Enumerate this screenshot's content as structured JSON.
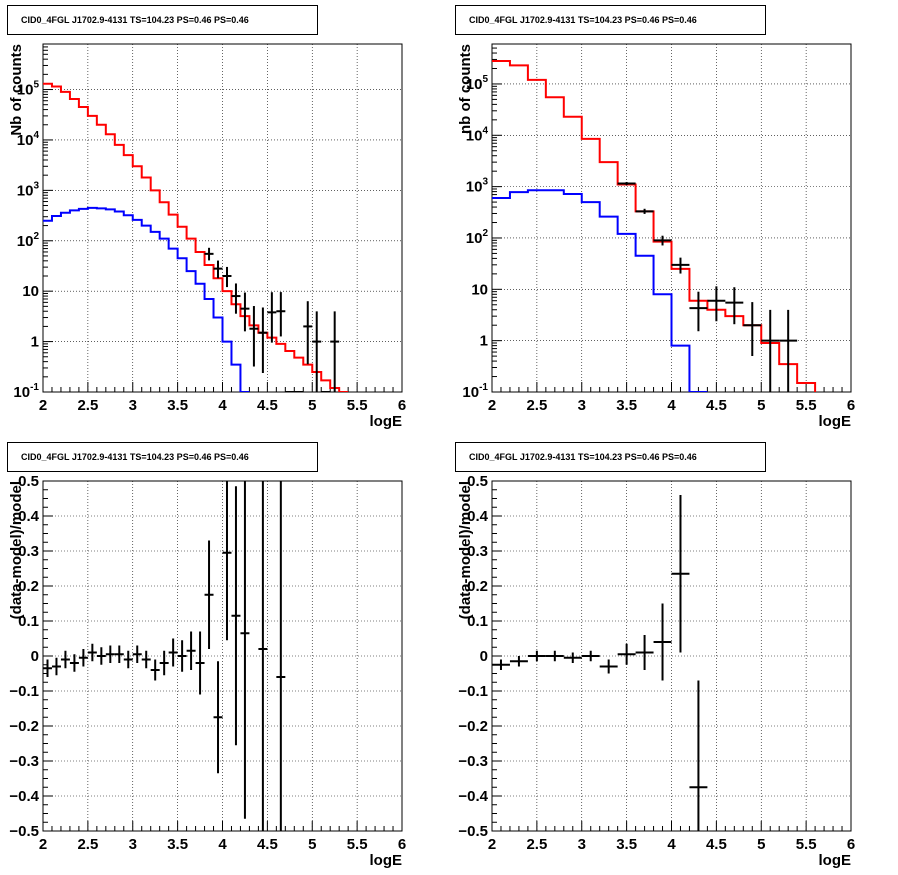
{
  "colors": {
    "model_total": "#ff0000",
    "model_source": "#0000ff",
    "data": "#000000",
    "grid": "#000000"
  },
  "charts": [
    {
      "id": "counts-fine",
      "title": "CID0_4FGL J1702.9-4131 TS=104.23 PS=0.46 PS=0.46",
      "xlabel": "logE",
      "ylabel": "Nb of counts",
      "xticks": [
        "2",
        "2.5",
        "3",
        "3.5",
        "4",
        "4.5",
        "5",
        "5.5",
        "6"
      ],
      "yticks": [
        "10^-1",
        "1",
        "10",
        "10^2",
        "10^3",
        "10^4",
        "10^5"
      ]
    },
    {
      "id": "counts-coarse",
      "title": "CID0_4FGL J1702.9-4131 TS=104.23 PS=0.46 PS=0.46",
      "xlabel": "logE",
      "ylabel": "nb of counts",
      "xticks": [
        "2",
        "2.5",
        "3",
        "3.5",
        "4",
        "4.5",
        "5",
        "5.5",
        "6"
      ],
      "yticks": [
        "10^-1",
        "1",
        "10",
        "10^2",
        "10^3",
        "10^4",
        "10^5"
      ]
    },
    {
      "id": "residuals-fine",
      "title": "CID0_4FGL J1702.9-4131 TS=104.23 PS=0.46 PS=0.46",
      "xlabel": "logE",
      "ylabel": "(data-model)/model",
      "xticks": [
        "2",
        "2.5",
        "3",
        "3.5",
        "4",
        "4.5",
        "5",
        "5.5",
        "6"
      ],
      "yticks": [
        "−0.5",
        "−0.4",
        "−0.3",
        "−0.2",
        "−0.1",
        "0",
        "0.1",
        "0.2",
        "0.3",
        "0.4",
        "0.5"
      ]
    },
    {
      "id": "residuals-coarse",
      "title": "CID0_4FGL J1702.9-4131 TS=104.23 PS=0.46 PS=0.46",
      "xlabel": "logE",
      "ylabel": "(data-model)/model",
      "xticks": [
        "2",
        "2.5",
        "3",
        "3.5",
        "4",
        "4.5",
        "5",
        "5.5",
        "6"
      ],
      "yticks": [
        "−0.5",
        "−0.4",
        "−0.3",
        "−0.2",
        "−0.1",
        "0",
        "0.1",
        "0.2",
        "0.3",
        "0.4",
        "0.5"
      ]
    }
  ],
  "chart_data": [
    {
      "type": "line",
      "title": "CID0_4FGL J1702.9-4131 TS=104.23 PS=0.46 PS=0.46",
      "xlabel": "logE",
      "ylabel": "Nb of counts",
      "xlim": [
        2,
        6
      ],
      "ylim": [
        0.1,
        800000
      ],
      "yscale": "log",
      "grid": true,
      "bin_width": 0.1,
      "series": [
        {
          "style": "step",
          "color": "#ff0000",
          "x": [
            2.0,
            2.1,
            2.2,
            2.3,
            2.4,
            2.5,
            2.6,
            2.7,
            2.8,
            2.9,
            3.0,
            3.1,
            3.2,
            3.3,
            3.4,
            3.5,
            3.6,
            3.7,
            3.8,
            3.9,
            4.0,
            4.1,
            4.2,
            4.3,
            4.4,
            4.5,
            4.6,
            4.7,
            4.8,
            4.9,
            5.0,
            5.1,
            5.2,
            5.3
          ],
          "values": [
            130000,
            115000,
            90000,
            65000,
            45000,
            30000,
            20000,
            13000,
            8000,
            5000,
            3000,
            1800,
            1000,
            580,
            330,
            190,
            110,
            60,
            33,
            18,
            10,
            5.5,
            3.2,
            2.1,
            1.5,
            1.2,
            0.9,
            0.65,
            0.48,
            0.35,
            0.25,
            0.17,
            0.12,
            0.1
          ]
        },
        {
          "style": "step",
          "color": "#0000ff",
          "x": [
            2.0,
            2.1,
            2.2,
            2.3,
            2.4,
            2.5,
            2.6,
            2.7,
            2.8,
            2.9,
            3.0,
            3.1,
            3.2,
            3.3,
            3.4,
            3.5,
            3.6,
            3.7,
            3.8,
            3.9,
            4.0,
            4.1,
            4.2
          ],
          "values": [
            250,
            310,
            360,
            400,
            430,
            450,
            440,
            420,
            380,
            320,
            260,
            200,
            150,
            110,
            70,
            45,
            25,
            14,
            7,
            3,
            1,
            0.35,
            0.1
          ]
        },
        {
          "style": "errorbar",
          "color": "#000000",
          "x": [
            3.85,
            3.95,
            4.05,
            4.15,
            4.25,
            4.35,
            4.45,
            4.55,
            4.65,
            4.75,
            4.85,
            4.95,
            5.05,
            5.15,
            5.25
          ],
          "values": [
            55,
            28,
            20,
            8,
            4.5,
            1.8,
            1.5,
            3.8,
            4.0,
            0.1,
            0.1,
            2.0,
            1.0,
            0.1,
            1.0
          ],
          "err_low": [
            0.13,
            0.19,
            0.22,
            0.35,
            0.45,
            0.75,
            0.8,
            0.6,
            0.5,
            0,
            0,
            0.75,
            1.0,
            0,
            1.0
          ],
          "err_high": [
            0.12,
            0.16,
            0.18,
            0.25,
            0.32,
            0.45,
            0.5,
            0.4,
            0.38,
            0,
            0,
            0.5,
            0.6,
            0,
            0.6
          ]
        }
      ]
    },
    {
      "type": "line",
      "title": "CID0_4FGL J1702.9-4131 TS=104.23 PS=0.46 PS=0.46",
      "xlabel": "logE",
      "ylabel": "nb of counts",
      "xlim": [
        2,
        6
      ],
      "ylim": [
        0.1,
        600000
      ],
      "yscale": "log",
      "grid": true,
      "bin_width": 0.2,
      "series": [
        {
          "style": "step",
          "color": "#ff0000",
          "x": [
            2.0,
            2.2,
            2.4,
            2.6,
            2.8,
            3.0,
            3.2,
            3.4,
            3.6,
            3.8,
            4.0,
            4.2,
            4.4,
            4.6,
            4.8,
            5.0,
            5.2,
            5.4
          ],
          "values": [
            280000,
            230000,
            120000,
            55000,
            23000,
            8500,
            3000,
            1100,
            330,
            85,
            25,
            6,
            4,
            3,
            2,
            0.9,
            0.35,
            0.15
          ]
        },
        {
          "style": "step",
          "color": "#0000ff",
          "x": [
            2.0,
            2.2,
            2.4,
            2.6,
            2.8,
            3.0,
            3.2,
            3.4,
            3.6,
            3.8,
            4.0,
            4.2
          ],
          "values": [
            600,
            780,
            850,
            850,
            720,
            500,
            260,
            120,
            45,
            8,
            0.8,
            0.1
          ]
        },
        {
          "style": "errorbar",
          "color": "#000000",
          "x": [
            3.5,
            3.7,
            3.9,
            4.1,
            4.3,
            4.5,
            4.7,
            4.9,
            5.1,
            5.3
          ],
          "values": [
            1150,
            330,
            90,
            30,
            4.3,
            6,
            5.5,
            2,
            1,
            1
          ],
          "err_low": [
            0.03,
            0.05,
            0.1,
            0.17,
            0.45,
            0.4,
            0.42,
            0.6,
            1.0,
            1.0
          ],
          "err_high": [
            0.03,
            0.05,
            0.09,
            0.14,
            0.32,
            0.28,
            0.3,
            0.45,
            0.6,
            0.6
          ]
        }
      ]
    },
    {
      "type": "scatter",
      "title": "CID0_4FGL J1702.9-4131 TS=104.23 PS=0.46 PS=0.46",
      "xlabel": "logE",
      "ylabel": "(data-model)/model",
      "xlim": [
        2,
        6
      ],
      "ylim": [
        -0.5,
        0.5
      ],
      "grid": true,
      "bin_width": 0.1,
      "series": [
        {
          "style": "errorbar",
          "color": "#000000",
          "x": [
            2.05,
            2.15,
            2.25,
            2.35,
            2.45,
            2.55,
            2.65,
            2.75,
            2.85,
            2.95,
            3.05,
            3.15,
            3.25,
            3.35,
            3.45,
            3.55,
            3.65,
            3.75,
            3.85,
            3.95,
            4.05,
            4.15,
            4.25,
            4.45,
            4.65
          ],
          "values": [
            -0.035,
            -0.03,
            -0.01,
            -0.02,
            -0.005,
            0.01,
            0.0,
            0.005,
            0.005,
            -0.01,
            0.005,
            -0.01,
            -0.04,
            -0.02,
            0.01,
            0.0,
            0.015,
            -0.02,
            0.175,
            -0.175,
            0.295,
            0.115,
            0.065,
            0.02,
            -0.06
          ],
          "err": [
            0.025,
            0.025,
            0.025,
            0.025,
            0.025,
            0.025,
            0.025,
            0.025,
            0.025,
            0.025,
            0.025,
            0.025,
            0.03,
            0.035,
            0.04,
            0.045,
            0.055,
            0.09,
            0.155,
            0.16,
            0.25,
            0.37,
            0.53,
            0.8,
            0.9
          ]
        }
      ]
    },
    {
      "type": "scatter",
      "title": "CID0_4FGL J1702.9-4131 TS=104.23 PS=0.46 PS=0.46",
      "xlabel": "logE",
      "ylabel": "(data-model)/model",
      "xlim": [
        2,
        6
      ],
      "ylim": [
        -0.5,
        0.5
      ],
      "grid": true,
      "bin_width": 0.2,
      "series": [
        {
          "style": "errorbar",
          "color": "#000000",
          "x": [
            2.1,
            2.3,
            2.5,
            2.7,
            2.9,
            3.1,
            3.3,
            3.5,
            3.7,
            3.9,
            4.1,
            4.3
          ],
          "values": [
            -0.025,
            -0.015,
            0.0,
            0.0,
            -0.005,
            0.0,
            -0.03,
            0.005,
            0.01,
            0.04,
            0.235,
            -0.375
          ],
          "err": [
            0.015,
            0.015,
            0.015,
            0.015,
            0.015,
            0.015,
            0.02,
            0.03,
            0.05,
            0.11,
            0.225,
            0.305
          ]
        }
      ]
    }
  ]
}
